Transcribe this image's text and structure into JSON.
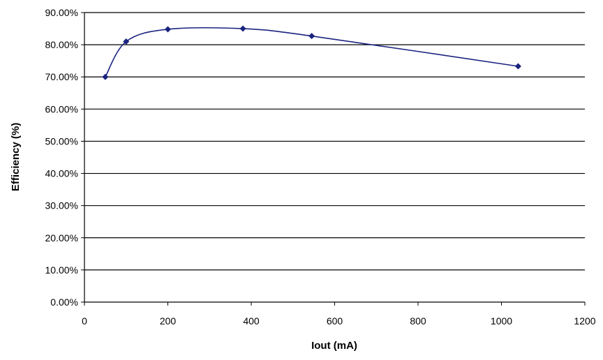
{
  "chart_data": {
    "type": "line",
    "title": "",
    "xlabel": "Iout (mA)",
    "ylabel": "Efficiency (%)",
    "xlim": [
      0,
      1200
    ],
    "ylim": [
      0,
      0.9
    ],
    "x_ticks": [
      0,
      200,
      400,
      600,
      800,
      1000,
      1200
    ],
    "x_tick_labels": [
      "0",
      "200",
      "400",
      "600",
      "800",
      "1000",
      "1200"
    ],
    "y_ticks": [
      0,
      0.1,
      0.2,
      0.3,
      0.4,
      0.5,
      0.6,
      0.7,
      0.8,
      0.9
    ],
    "y_tick_labels": [
      "0.00%",
      "10.00%",
      "20.00%",
      "30.00%",
      "40.00%",
      "50.00%",
      "60.00%",
      "70.00%",
      "80.00%",
      "90.00%"
    ],
    "grid": "horizontal",
    "legend": "none",
    "smooth": true,
    "series": [
      {
        "color": "#1a237e",
        "marker": "diamond",
        "x": [
          50,
          100,
          200,
          380,
          545,
          1040
        ],
        "y": [
          0.7,
          0.81,
          0.848,
          0.85,
          0.827,
          0.733
        ]
      }
    ]
  }
}
